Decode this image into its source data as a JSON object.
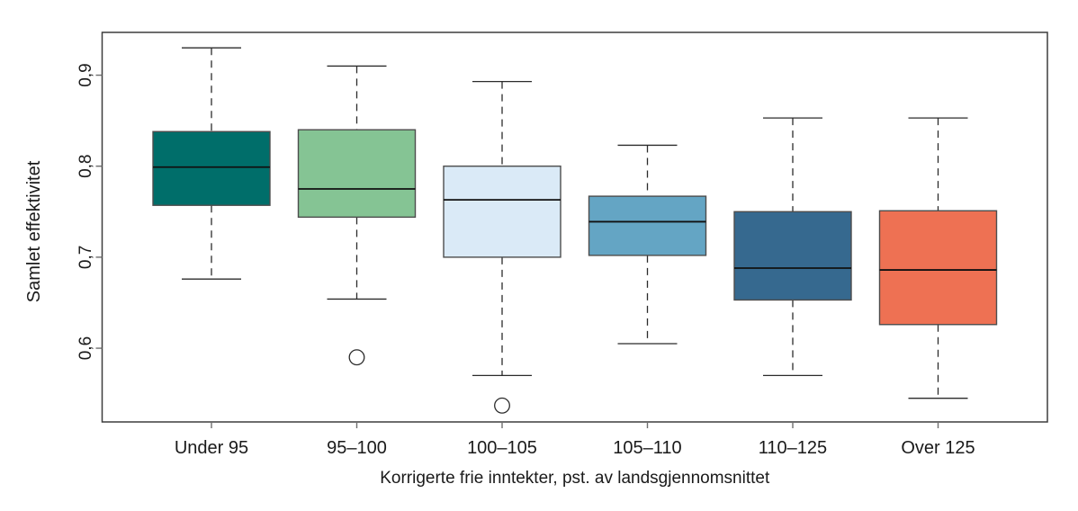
{
  "chart_data": {
    "type": "boxplot",
    "title": "",
    "xlabel": "Korrigerte frie inntekter, pst. av landsgjennomsnittet",
    "ylabel": "Samlet effektivitet",
    "categories": [
      "Under 95",
      "95–100",
      "100–105",
      "105–110",
      "110–125",
      "Over 125"
    ],
    "yticks": [
      0.6,
      0.7,
      0.8,
      0.9
    ],
    "ytick_labels": [
      "0,6",
      "0,7",
      "0,8",
      "0,9"
    ],
    "ylim": [
      0.519,
      0.947
    ],
    "grid": false,
    "frame": true,
    "legend": "none",
    "series": [
      {
        "category": "Under 95",
        "color": "#006e6a",
        "whisker_low": 0.676,
        "q1": 0.757,
        "median": 0.799,
        "q3": 0.838,
        "whisker_high": 0.93,
        "outliers": []
      },
      {
        "category": "95–100",
        "color": "#85c494",
        "whisker_low": 0.654,
        "q1": 0.744,
        "median": 0.775,
        "q3": 0.84,
        "whisker_high": 0.91,
        "outliers": [
          0.59
        ]
      },
      {
        "category": "100–105",
        "color": "#daeaf7",
        "whisker_low": 0.57,
        "q1": 0.7,
        "median": 0.763,
        "q3": 0.8,
        "whisker_high": 0.893,
        "outliers": [
          0.537
        ]
      },
      {
        "category": "105–110",
        "color": "#64a5c4",
        "whisker_low": 0.605,
        "q1": 0.702,
        "median": 0.739,
        "q3": 0.767,
        "whisker_high": 0.823,
        "outliers": []
      },
      {
        "category": "110–125",
        "color": "#36698f",
        "whisker_low": 0.57,
        "q1": 0.653,
        "median": 0.688,
        "q3": 0.75,
        "whisker_high": 0.853,
        "outliers": []
      },
      {
        "category": "Over 125",
        "color": "#ee7153",
        "whisker_low": 0.545,
        "q1": 0.626,
        "median": 0.686,
        "q3": 0.751,
        "whisker_high": 0.853,
        "outliers": []
      }
    ]
  }
}
